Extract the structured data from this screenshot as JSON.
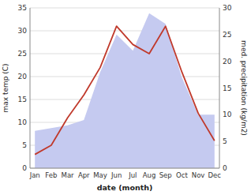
{
  "chart_data": {
    "type": "line",
    "categories": [
      "Jan",
      "Feb",
      "Mar",
      "Apr",
      "May",
      "Jun",
      "Jul",
      "Aug",
      "Sep",
      "Oct",
      "Nov",
      "Dec"
    ],
    "series": [
      {
        "type": "area",
        "axis": "y2",
        "color": "#c5caf0",
        "values": [
          7.0,
          7.5,
          8.0,
          9.0,
          18.0,
          25.0,
          22.0,
          29.0,
          27.0,
          17.0,
          10.0,
          10.0
        ]
      },
      {
        "type": "line",
        "color": "#c0392b",
        "values": [
          3.0,
          5.0,
          11.0,
          16.0,
          22.0,
          31.0,
          27.0,
          25.0,
          31.0,
          21.0,
          12.0,
          6.0
        ]
      }
    ],
    "xlabel": "date (month)",
    "ylabel": "max temp (C)",
    "y2label": "med. precipitation (kg/m2)",
    "ylim": [
      0,
      35
    ],
    "yticks": [
      0,
      5,
      10,
      15,
      20,
      25,
      30,
      35
    ],
    "y2lim": [
      0,
      30
    ],
    "y2ticks": [
      0,
      5,
      10,
      15,
      20,
      25,
      30
    ],
    "grid": true
  }
}
